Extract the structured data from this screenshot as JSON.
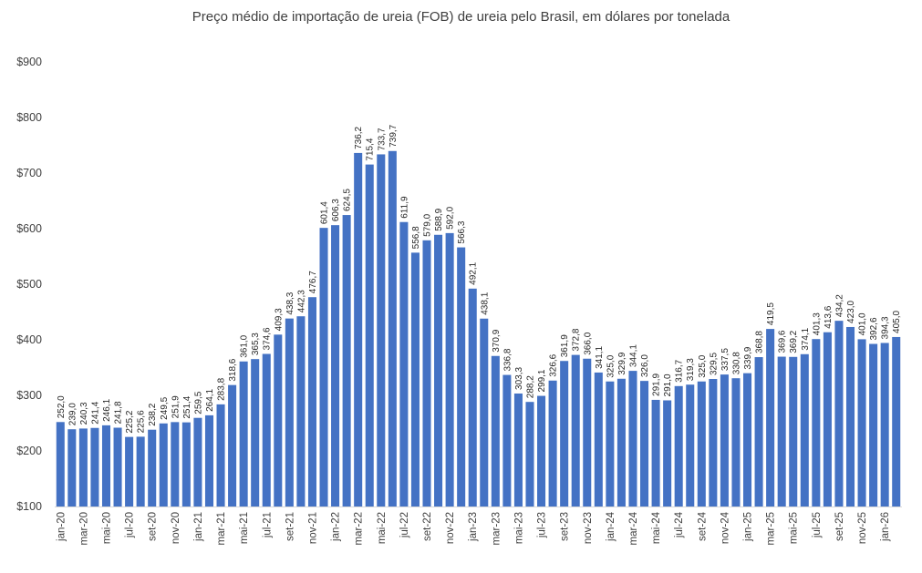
{
  "chart_data": {
    "type": "bar",
    "title": "Preço médio de importação de ureia (FOB) de ureia pelo Brasil, em dólares por tonelada",
    "xlabel": "",
    "ylabel": "",
    "ylim": [
      100,
      900
    ],
    "y_ticks": [
      "$100",
      "$200",
      "$300",
      "$400",
      "$500",
      "$600",
      "$700",
      "$800",
      "$900"
    ],
    "y_tick_values": [
      100,
      200,
      300,
      400,
      500,
      600,
      700,
      800,
      900
    ],
    "grid": false,
    "bar_color": "#4472C4",
    "categories": [
      "jan-20",
      "fev-20",
      "mar-20",
      "abr-20",
      "mai-20",
      "jun-20",
      "jul-20",
      "ago-20",
      "set-20",
      "out-20",
      "nov-20",
      "dez-20",
      "jan-21",
      "fev-21",
      "mar-21",
      "abr-21",
      "mai-21",
      "jun-21",
      "jul-21",
      "ago-21",
      "set-21",
      "out-21",
      "nov-21",
      "dez-21",
      "jan-22",
      "fev-22",
      "mar-22",
      "abr-22",
      "mai-22",
      "jun-22",
      "jul-22",
      "ago-22",
      "set-22",
      "out-22",
      "nov-22",
      "dez-22",
      "jan-23",
      "fev-23",
      "mar-23",
      "abr-23",
      "mai-23",
      "jun-23",
      "jul-23",
      "ago-23",
      "set-23",
      "out-23",
      "nov-23",
      "dez-23",
      "jan-24",
      "fev-24",
      "mar-24",
      "abr-24",
      "mai-24",
      "jun-24",
      "jul-24",
      "ago-24",
      "set-24",
      "out-24",
      "nov-24",
      "dez-24",
      "jan-25",
      "fev-25",
      "mar-25",
      "abr-25",
      "mai-25",
      "jun-25",
      "jul-25",
      "ago-25",
      "set-25",
      "out-25",
      "nov-25",
      "dez-25",
      "jan-26",
      "fev-26"
    ],
    "visible_x_labels": [
      "jan-20",
      "mar-20",
      "mai-20",
      "jul-20",
      "set-20",
      "nov-20",
      "jan-21",
      "mar-21",
      "mai-21",
      "jul-21",
      "set-21",
      "nov-21",
      "jan-22",
      "mar-22",
      "mai-22",
      "jul-22",
      "set-22",
      "nov-22",
      "jan-23",
      "mar-23",
      "mai-23",
      "jul-23",
      "set-23",
      "nov-23",
      "jan-24",
      "mar-24",
      "mai-24",
      "jul-24",
      "set-24",
      "nov-24",
      "jan-25",
      "mar-25",
      "mai-25",
      "jul-25",
      "set-25",
      "nov-25",
      "jan-26"
    ],
    "values": [
      252.0,
      239.0,
      240.3,
      241.4,
      246.1,
      241.8,
      225.2,
      225.6,
      238.2,
      249.5,
      251.9,
      251.4,
      259.5,
      264.1,
      283.8,
      318.6,
      361.0,
      365.3,
      374.6,
      409.3,
      438.3,
      442.3,
      476.7,
      601.4,
      606.3,
      624.5,
      736.2,
      715.4,
      733.7,
      739.7,
      611.9,
      556.8,
      579.0,
      588.9,
      592.0,
      566.3,
      492.1,
      438.1,
      370.9,
      336.8,
      303.3,
      288.2,
      299.1,
      326.6,
      361.9,
      372.8,
      366.0,
      341.1,
      325.0,
      329.9,
      344.1,
      326.0,
      291.9,
      291.0,
      316.7,
      319.3,
      325.0,
      329.5,
      337.5,
      330.8,
      339.9,
      368.8,
      419.5,
      369.6,
      369.2,
      374.1,
      401.3,
      413.6,
      434.2,
      423.0,
      401.0,
      392.6,
      394.3,
      405.0
    ],
    "value_labels": [
      "252,0",
      "239,0",
      "240,3",
      "241,4",
      "246,1",
      "241,8",
      "225,2",
      "225,6",
      "238,2",
      "249,5",
      "251,9",
      "251,4",
      "259,5",
      "264,1",
      "283,8",
      "318,6",
      "361,0",
      "365,3",
      "374,6",
      "409,3",
      "438,3",
      "442,3",
      "476,7",
      "601,4",
      "606,3",
      "624,5",
      "736,2",
      "715,4",
      "733,7",
      "739,7",
      "611,9",
      "556,8",
      "579,0",
      "588,9",
      "592,0",
      "566,3",
      "492,1",
      "438,1",
      "370,9",
      "336,8",
      "303,3",
      "288,2",
      "299,1",
      "326,6",
      "361,9",
      "372,8",
      "366,0",
      "341,1",
      "325,0",
      "329,9",
      "344,1",
      "326,0",
      "291,9",
      "291,0",
      "316,7",
      "319,3",
      "325,0",
      "329,5",
      "337,5",
      "330,8",
      "339,9",
      "368,8",
      "419,5",
      "369,6",
      "369,2",
      "374,1",
      "401,3",
      "413,6",
      "434,2",
      "423,0",
      "401,0",
      "392,6",
      "394,3",
      "405,0"
    ]
  }
}
